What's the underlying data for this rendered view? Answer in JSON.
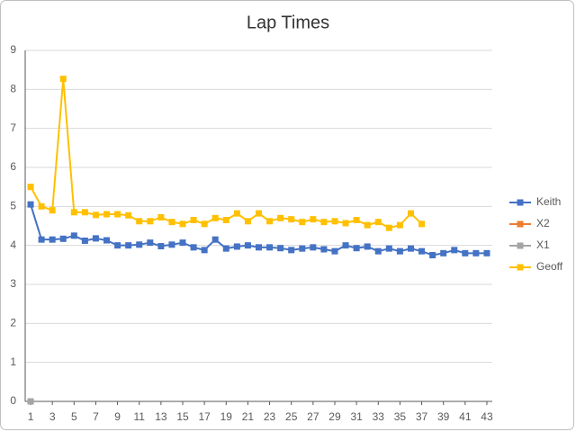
{
  "chart_data": {
    "type": "line",
    "title": "Lap Times",
    "x": [
      1,
      2,
      3,
      4,
      5,
      6,
      7,
      8,
      9,
      10,
      11,
      12,
      13,
      14,
      15,
      16,
      17,
      18,
      19,
      20,
      21,
      22,
      23,
      24,
      25,
      26,
      27,
      28,
      29,
      30,
      31,
      32,
      33,
      34,
      35,
      36,
      37,
      38,
      39,
      40,
      41,
      42,
      43
    ],
    "xlim": [
      0.5,
      43.5
    ],
    "xticks": [
      1,
      3,
      5,
      7,
      9,
      11,
      13,
      15,
      17,
      19,
      21,
      23,
      25,
      27,
      29,
      31,
      33,
      35,
      37,
      39,
      41,
      43
    ],
    "ylim": [
      0,
      9
    ],
    "yticks": [
      0,
      1,
      2,
      3,
      4,
      5,
      6,
      7,
      8,
      9
    ],
    "grid": true,
    "legend": "right",
    "series": [
      {
        "name": "Keith",
        "color": "#4472c4",
        "values": [
          5.05,
          4.15,
          4.15,
          4.17,
          4.25,
          4.12,
          4.18,
          4.13,
          4.0,
          4.0,
          4.02,
          4.07,
          3.98,
          4.02,
          4.07,
          3.95,
          3.88,
          4.15,
          3.92,
          3.97,
          4.0,
          3.95,
          3.95,
          3.93,
          3.88,
          3.92,
          3.95,
          3.9,
          3.85,
          4.0,
          3.93,
          3.97,
          3.85,
          3.92,
          3.85,
          3.92,
          3.85,
          3.75,
          3.8,
          3.88,
          3.8,
          3.8,
          3.8
        ]
      },
      {
        "name": "X2",
        "color": "#ed7d31",
        "values": [
          0,
          null,
          null,
          null,
          null,
          null,
          null,
          null,
          null,
          null,
          null,
          null,
          null,
          null,
          null,
          null,
          null,
          null,
          null,
          null,
          null,
          null,
          null,
          null,
          null,
          null,
          null,
          null,
          null,
          null,
          null,
          null,
          null,
          null,
          null,
          null,
          null,
          null,
          null,
          null,
          null,
          null,
          null
        ]
      },
      {
        "name": "X1",
        "color": "#a5a5a5",
        "values": [
          0,
          null,
          null,
          null,
          null,
          null,
          null,
          null,
          null,
          null,
          null,
          null,
          null,
          null,
          null,
          null,
          null,
          null,
          null,
          null,
          null,
          null,
          null,
          null,
          null,
          null,
          null,
          null,
          null,
          null,
          null,
          null,
          null,
          null,
          null,
          null,
          null,
          null,
          null,
          null,
          null,
          null,
          null
        ]
      },
      {
        "name": "Geoff",
        "color": "#ffc000",
        "values": [
          5.5,
          5.0,
          4.9,
          8.27,
          4.85,
          4.85,
          4.78,
          4.8,
          4.8,
          4.77,
          4.62,
          4.62,
          4.72,
          4.6,
          4.55,
          4.65,
          4.55,
          4.7,
          4.65,
          4.82,
          4.62,
          4.82,
          4.62,
          4.7,
          4.67,
          4.6,
          4.67,
          4.6,
          4.62,
          4.57,
          4.65,
          4.52,
          4.6,
          4.45,
          4.52,
          4.82,
          4.55,
          null,
          null,
          null,
          null,
          null,
          null
        ]
      }
    ]
  }
}
